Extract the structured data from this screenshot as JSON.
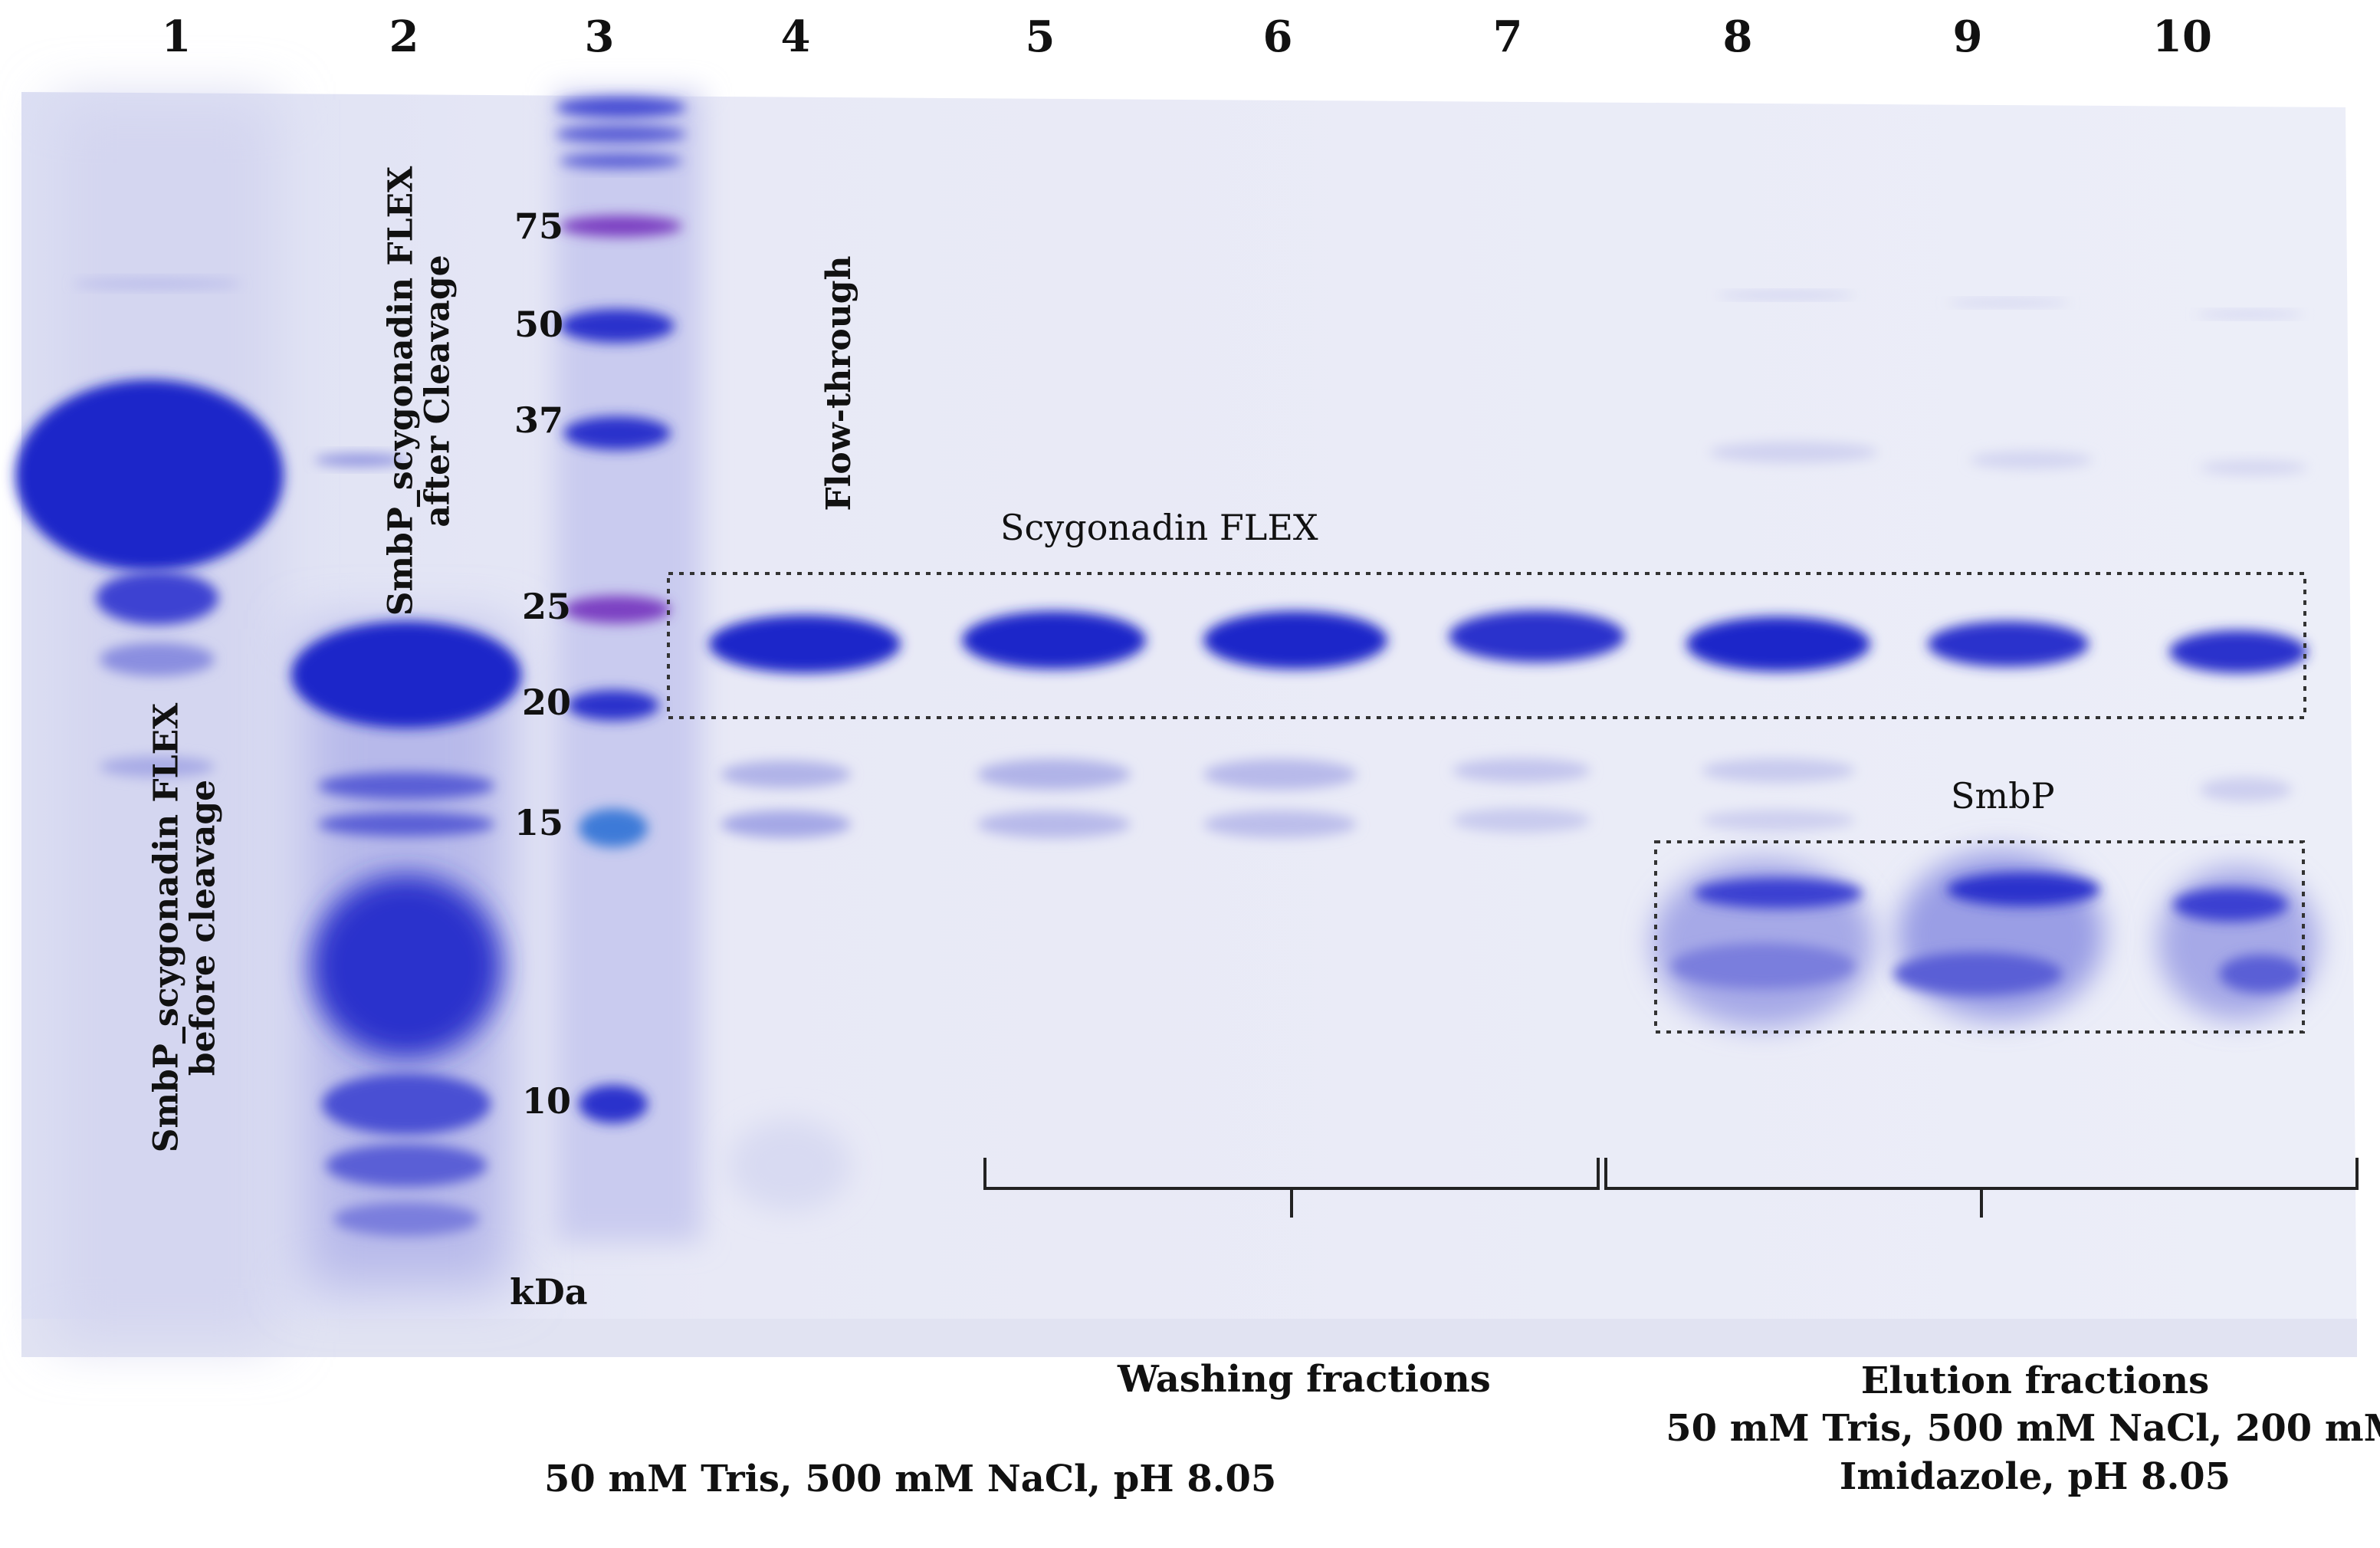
{
  "lanes": [
    {
      "number": "1"
    },
    {
      "number": "2"
    },
    {
      "number": "3"
    },
    {
      "number": "4"
    },
    {
      "number": "5"
    },
    {
      "number": "6"
    },
    {
      "number": "7"
    },
    {
      "number": "8"
    },
    {
      "number": "9"
    },
    {
      "number": "10"
    }
  ],
  "marker": {
    "unit": "kDa",
    "bands": [
      {
        "label": "75"
      },
      {
        "label": "50"
      },
      {
        "label": "37"
      },
      {
        "label": "25"
      },
      {
        "label": "20"
      },
      {
        "label": "15"
      },
      {
        "label": "10"
      }
    ]
  },
  "lane_labels": {
    "lane1_line1": "SmbP_scygonadin FLEX",
    "lane1_line2": "before cleavage",
    "lane2_line1": "SmbP_scygonadin FLEX",
    "lane2_line2": "after Cleavage",
    "lane4": "Flow-through"
  },
  "annotations": {
    "scygonadin": "Scygonadin FLEX",
    "smbp": "SmbP"
  },
  "groups": {
    "washing": "Washing fractions",
    "washing_buffer": "50 mM Tris, 500 mM NaCl, pH 8.05",
    "elution": "Elution fractions",
    "elution_buffer_line1": "50 mM Tris, 500 mM NaCl, 200 mM",
    "elution_buffer_line2": "Imidazole, pH 8.05"
  },
  "colors": {
    "gel_background": "#e9eaf6",
    "band": "#2a2fd0",
    "band_light": "#8f93e0"
  }
}
